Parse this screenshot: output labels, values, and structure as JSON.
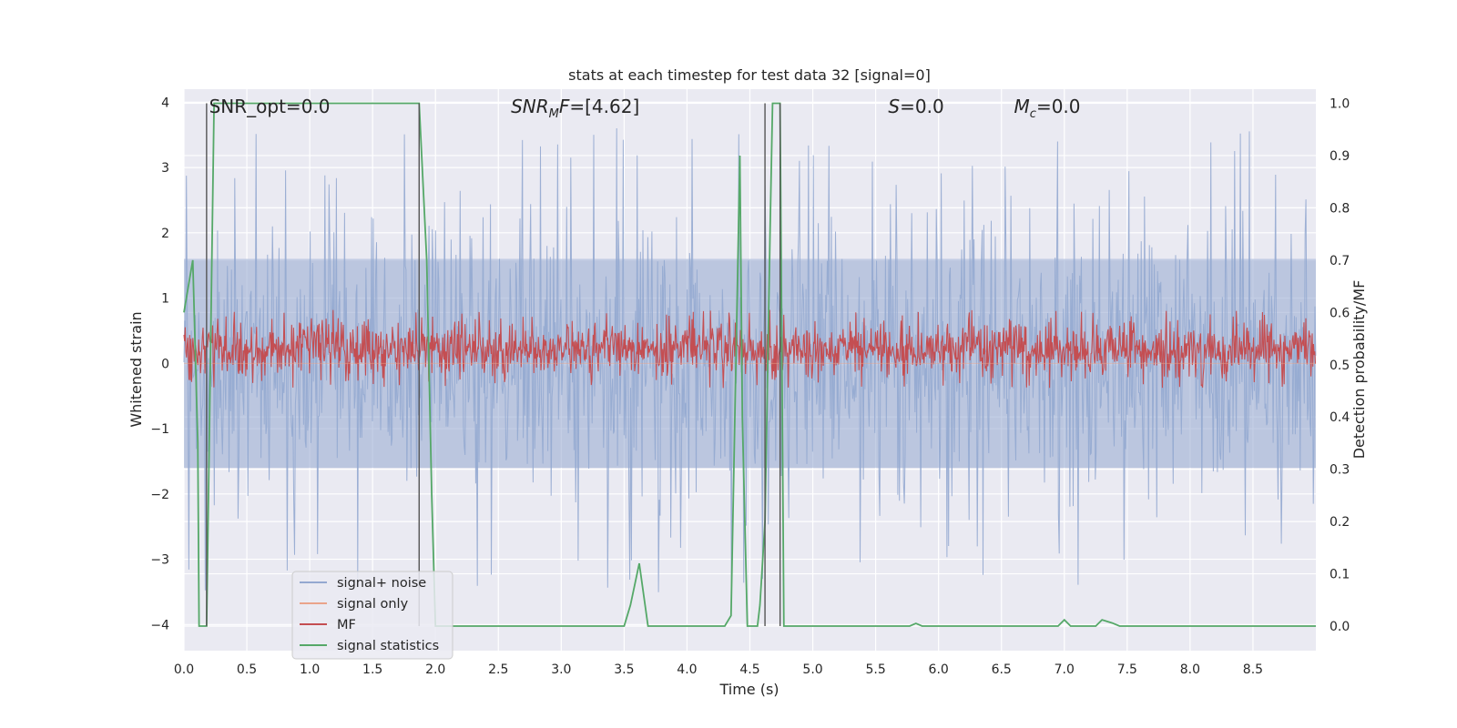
{
  "chart_data": {
    "type": "line",
    "title": "stats at each timestep for test data 32 [signal=0]",
    "xlabel": "Time (s)",
    "ylabel_left": "Whitened strain",
    "ylabel_right": "Detection probability/MF",
    "xlim": [
      0.0,
      9.0
    ],
    "ylim_left": [
      -4.4,
      4.2
    ],
    "ylim_right": [
      -0.047,
      1.027
    ],
    "x_ticks": [
      "0.0",
      "0.5",
      "1.0",
      "1.5",
      "2.0",
      "2.5",
      "3.0",
      "3.5",
      "4.0",
      "4.5",
      "5.0",
      "5.5",
      "6.0",
      "6.5",
      "7.0",
      "7.5",
      "8.0",
      "8.5"
    ],
    "y_ticks_left": [
      "4",
      "3",
      "2",
      "1",
      "0",
      "−1",
      "−2",
      "−3",
      "−4"
    ],
    "y_ticks_right": [
      "1.0",
      "0.9",
      "0.8",
      "0.7",
      "0.6",
      "0.5",
      "0.4",
      "0.3",
      "0.2",
      "0.1",
      "0.0"
    ],
    "grid": true,
    "legend_position": "lower-left",
    "annotations": [
      {
        "text": "SNR_opt=0.0",
        "x": 0.2
      },
      {
        "text": "SNR_MF=[4.62]",
        "x": 2.6
      },
      {
        "text": "S=0.0",
        "x": 5.6
      },
      {
        "text": "M_c=0.0",
        "x": 6.6
      }
    ],
    "series": [
      {
        "name": "signal+ noise",
        "color": "#94a8d0",
        "kind": "noise",
        "center": 0.0,
        "band": 1.6,
        "extreme": 3.6,
        "axis": "left"
      },
      {
        "name": "signal only",
        "color": "#eaa48a",
        "kind": "flat",
        "value": 0.0,
        "axis": "left"
      },
      {
        "name": "MF",
        "color": "#c44e52",
        "kind": "noise",
        "center": 0.53,
        "band": 0.04,
        "extreme": 0.075,
        "axis": "right"
      },
      {
        "name": "signal statistics",
        "color": "#55a868",
        "kind": "line",
        "axis": "right",
        "x": [
          0.0,
          0.07,
          0.11,
          0.12,
          0.14,
          0.17,
          0.18,
          0.24,
          0.26,
          0.3,
          1.85,
          1.87,
          1.93,
          1.97,
          2.0,
          2.5,
          3.0,
          3.5,
          3.55,
          3.62,
          3.69,
          3.72,
          4.3,
          4.35,
          4.42,
          4.44,
          4.48,
          4.53,
          4.56,
          4.58,
          4.62,
          4.66,
          4.68,
          4.7,
          4.74,
          4.77,
          4.81,
          4.83,
          4.9,
          5.5,
          5.77,
          5.82,
          5.87,
          6.5,
          6.95,
          7.0,
          7.05,
          7.25,
          7.3,
          7.38,
          7.44,
          8.0,
          9.0
        ],
        "y": [
          0.6,
          0.7,
          0.35,
          0.0,
          0.0,
          0.0,
          0.0,
          1.0,
          1.0,
          1.0,
          1.0,
          1.0,
          0.7,
          0.25,
          0.0,
          0.0,
          0.0,
          0.0,
          0.04,
          0.12,
          0.0,
          0.0,
          0.0,
          0.02,
          0.9,
          0.4,
          0.0,
          0.0,
          0.0,
          0.04,
          0.2,
          0.75,
          1.0,
          1.0,
          1.0,
          0.0,
          0.0,
          0.0,
          0.0,
          0.0,
          0.0,
          0.005,
          0.0,
          0.0,
          0.0,
          0.012,
          0.0,
          0.0,
          0.012,
          0.006,
          0.0,
          0.0,
          0.0
        ]
      }
    ],
    "vlines": [
      0.18,
      1.87,
      4.62,
      4.74
    ]
  }
}
